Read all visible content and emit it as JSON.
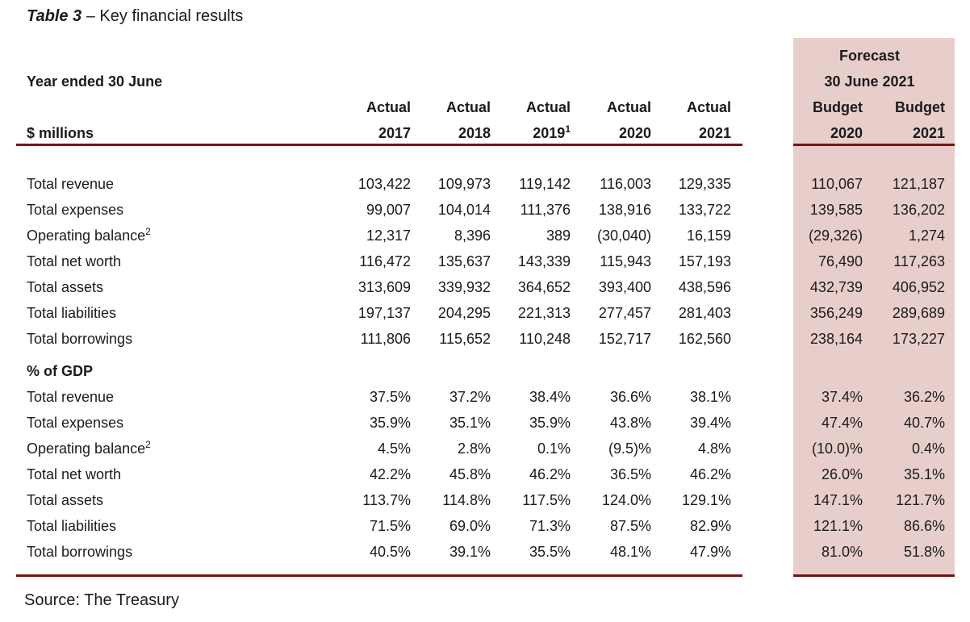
{
  "title": {
    "prefix": "Table 3",
    "rest": " – Key financial results"
  },
  "colors": {
    "rule": "#771410",
    "forecast_panel_bg": "#e8cecb",
    "text": "#1b1b1b"
  },
  "source": "Source: The Treasury",
  "table": {
    "header": {
      "year_ended": "Year ended 30 June",
      "unit_label": "$ millions",
      "actual_label": "Actual",
      "budget_label": "Budget",
      "forecast_label": "Forecast",
      "forecast_date": "30 June 2021",
      "actual_years": [
        {
          "year": "2017",
          "sup": ""
        },
        {
          "year": "2018",
          "sup": ""
        },
        {
          "year": "2019",
          "sup": "1"
        },
        {
          "year": "2020",
          "sup": ""
        },
        {
          "year": "2021",
          "sup": ""
        }
      ],
      "budget_years": [
        {
          "year": "2020",
          "sup": ""
        },
        {
          "year": "2021",
          "sup": ""
        }
      ]
    },
    "sections": [
      {
        "heading": "",
        "rows": [
          {
            "label": "Total revenue",
            "sup": "",
            "actual": [
              "103,422",
              "109,973",
              "119,142",
              "116,003",
              "129,335"
            ],
            "budget": [
              "110,067",
              "121,187"
            ]
          },
          {
            "label": "Total expenses",
            "sup": "",
            "actual": [
              "99,007",
              "104,014",
              "111,376",
              "138,916",
              "133,722"
            ],
            "budget": [
              "139,585",
              "136,202"
            ]
          },
          {
            "label": "Operating balance",
            "sup": "2",
            "actual": [
              "12,317",
              "8,396",
              "389",
              "(30,040)",
              "16,159"
            ],
            "budget": [
              "(29,326)",
              "1,274"
            ]
          },
          {
            "label": "Total net worth",
            "sup": "",
            "actual": [
              "116,472",
              "135,637",
              "143,339",
              "115,943",
              "157,193"
            ],
            "budget": [
              "76,490",
              "117,263"
            ]
          },
          {
            "label": "Total assets",
            "sup": "",
            "actual": [
              "313,609",
              "339,932",
              "364,652",
              "393,400",
              "438,596"
            ],
            "budget": [
              "432,739",
              "406,952"
            ]
          },
          {
            "label": "Total liabilities",
            "sup": "",
            "actual": [
              "197,137",
              "204,295",
              "221,313",
              "277,457",
              "281,403"
            ],
            "budget": [
              "356,249",
              "289,689"
            ]
          },
          {
            "label": "Total borrowings",
            "sup": "",
            "actual": [
              "111,806",
              "115,652",
              "110,248",
              "152,717",
              "162,560"
            ],
            "budget": [
              "238,164",
              "173,227"
            ]
          }
        ]
      },
      {
        "heading": "% of GDP",
        "rows": [
          {
            "label": "Total revenue",
            "sup": "",
            "actual": [
              "37.5%",
              "37.2%",
              "38.4%",
              "36.6%",
              "38.1%"
            ],
            "budget": [
              "37.4%",
              "36.2%"
            ]
          },
          {
            "label": "Total expenses",
            "sup": "",
            "actual": [
              "35.9%",
              "35.1%",
              "35.9%",
              "43.8%",
              "39.4%"
            ],
            "budget": [
              "47.4%",
              "40.7%"
            ]
          },
          {
            "label": "Operating balance",
            "sup": "2",
            "actual": [
              "4.5%",
              "2.8%",
              "0.1%",
              "(9.5)%",
              "4.8%"
            ],
            "budget": [
              "(10.0)%",
              "0.4%"
            ]
          },
          {
            "label": "Total net worth",
            "sup": "",
            "actual": [
              "42.2%",
              "45.8%",
              "46.2%",
              "36.5%",
              "46.2%"
            ],
            "budget": [
              "26.0%",
              "35.1%"
            ]
          },
          {
            "label": "Total assets",
            "sup": "",
            "actual": [
              "113.7%",
              "114.8%",
              "117.5%",
              "124.0%",
              "129.1%"
            ],
            "budget": [
              "147.1%",
              "121.7%"
            ]
          },
          {
            "label": "Total liabilities",
            "sup": "",
            "actual": [
              "71.5%",
              "69.0%",
              "71.3%",
              "87.5%",
              "82.9%"
            ],
            "budget": [
              "121.1%",
              "86.6%"
            ]
          },
          {
            "label": "Total borrowings",
            "sup": "",
            "actual": [
              "40.5%",
              "39.1%",
              "35.5%",
              "48.1%",
              "47.9%"
            ],
            "budget": [
              "81.0%",
              "51.8%"
            ]
          }
        ]
      }
    ]
  }
}
